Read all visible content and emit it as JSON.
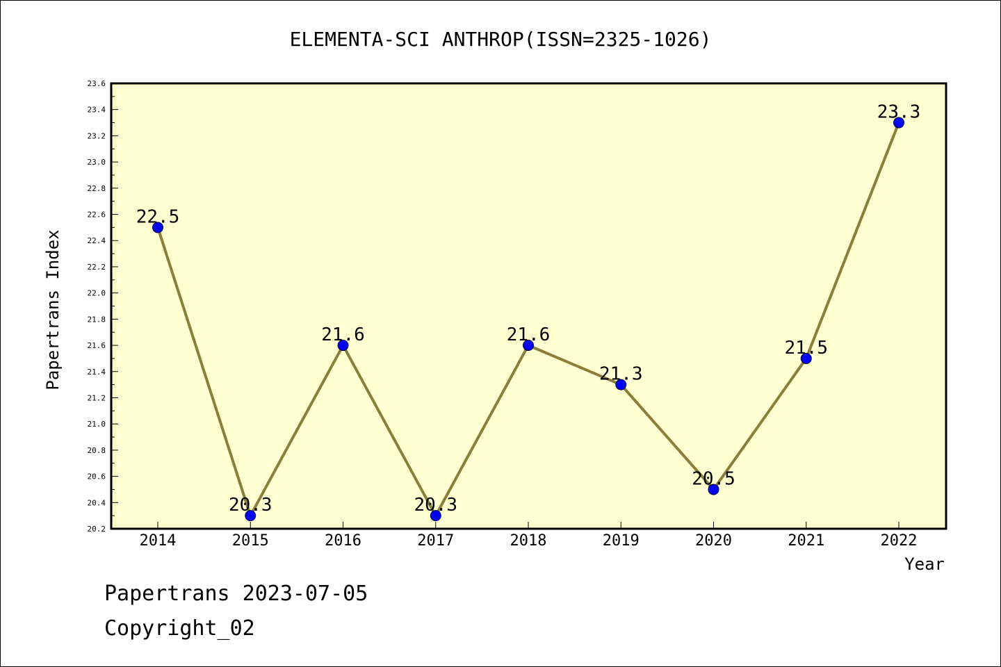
{
  "chart_data": {
    "type": "line",
    "title": "ELEMENTA-SCI ANTHROP(ISSN=2325-1026)",
    "xlabel": "Year",
    "ylabel": "Papertrans Index",
    "categories": [
      "2014",
      "2015",
      "2016",
      "2017",
      "2018",
      "2019",
      "2020",
      "2021",
      "2022"
    ],
    "values": [
      22.5,
      20.3,
      21.6,
      20.3,
      21.6,
      21.3,
      20.5,
      21.5,
      23.3
    ],
    "data_labels": [
      "22.5",
      "20.3",
      "21.6",
      "20.3",
      "21.6",
      "21.3",
      "20.5",
      "21.5",
      "23.3"
    ],
    "ylim": [
      20.2,
      23.6
    ],
    "yticks": [
      "20.2",
      "20.4",
      "20.6",
      "20.8",
      "21.0",
      "21.2",
      "21.4",
      "21.6",
      "21.8",
      "22.0",
      "22.2",
      "22.4",
      "22.6",
      "22.8",
      "23.0",
      "23.2",
      "23.4",
      "23.6"
    ],
    "grid": false,
    "colors": {
      "plot_background": "#ffffd2",
      "line": "#8b7d3a",
      "marker": "#0000ff"
    }
  },
  "footer": {
    "line1": "Papertrans 2023-07-05",
    "line2": "Copyright_02"
  }
}
